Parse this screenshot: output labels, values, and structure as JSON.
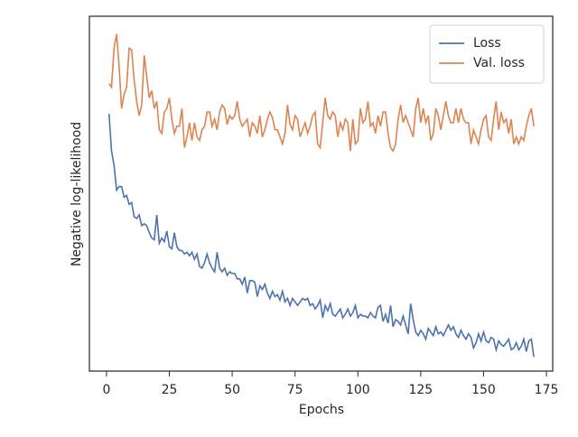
{
  "chart_data": {
    "type": "line",
    "xlabel": "Epochs",
    "ylabel": "Negative log-likelihood",
    "x": [
      1,
      2,
      3,
      4,
      5,
      6,
      7,
      8,
      9,
      10,
      11,
      12,
      13,
      14,
      15,
      16,
      17,
      18,
      19,
      20,
      21,
      22,
      23,
      24,
      25,
      26,
      27,
      28,
      29,
      30,
      31,
      32,
      33,
      34,
      35,
      36,
      37,
      38,
      39,
      40,
      41,
      42,
      43,
      44,
      45,
      46,
      47,
      48,
      49,
      50,
      51,
      52,
      53,
      54,
      55,
      56,
      57,
      58,
      59,
      60,
      61,
      62,
      63,
      64,
      65,
      66,
      67,
      68,
      69,
      70,
      71,
      72,
      73,
      74,
      75,
      76,
      77,
      78,
      79,
      80,
      81,
      82,
      83,
      84,
      85,
      86,
      87,
      88,
      89,
      90,
      91,
      92,
      93,
      94,
      95,
      96,
      97,
      98,
      99,
      100,
      101,
      102,
      103,
      104,
      105,
      106,
      107,
      108,
      109,
      110,
      111,
      112,
      113,
      114,
      115,
      116,
      117,
      118,
      119,
      120,
      121,
      122,
      123,
      124,
      125,
      126,
      127,
      128,
      129,
      130,
      131,
      132,
      133,
      134,
      135,
      136,
      137,
      138,
      139,
      140,
      141,
      142,
      143,
      144,
      145,
      146,
      147,
      148,
      149,
      150,
      151,
      152,
      153,
      154,
      155,
      156,
      157,
      158,
      159,
      160,
      161,
      162,
      163,
      164,
      165,
      166,
      167,
      168,
      169,
      170
    ],
    "series": [
      {
        "name": "Loss",
        "color": "#4c72b0",
        "values": [
          72.5,
          62,
          58,
          51,
          52,
          52,
          49,
          49.5,
          47,
          47.5,
          43.5,
          43,
          44,
          41,
          41.5,
          41,
          39,
          37.5,
          37,
          44,
          36,
          37.5,
          36.5,
          39.5,
          35,
          34.5,
          39,
          35,
          34,
          34,
          33,
          33.5,
          32.5,
          33.5,
          31.5,
          33,
          29.5,
          29,
          30.5,
          33,
          30.5,
          29,
          28,
          33.5,
          29,
          28,
          29,
          27,
          28,
          27.5,
          27.5,
          26,
          26,
          24.5,
          26.5,
          22,
          25.5,
          25.5,
          25,
          21,
          24,
          23,
          24.5,
          22,
          20.5,
          22.5,
          21,
          21.5,
          20,
          22.5,
          19.5,
          20.5,
          18.5,
          20.5,
          19.5,
          18.5,
          19.5,
          20.5,
          20,
          20.5,
          18.5,
          19,
          17.5,
          18.5,
          20,
          15,
          18.5,
          17,
          19,
          16,
          15.5,
          16.5,
          17.5,
          15,
          16,
          17.5,
          15.5,
          16.5,
          18.5,
          15,
          16,
          15.5,
          15.5,
          15,
          16.5,
          15.5,
          15,
          18,
          18.5,
          14,
          16,
          13.5,
          18.5,
          12.5,
          14.5,
          14,
          13,
          15.5,
          13,
          10.5,
          19,
          14.5,
          11,
          10,
          11.5,
          10.5,
          9,
          12,
          11,
          10,
          12.5,
          10.5,
          11,
          10,
          11.5,
          13,
          11.5,
          12.5,
          10.5,
          9.5,
          11.5,
          10,
          9,
          10.5,
          9.5,
          6.5,
          8,
          10.5,
          8.5,
          11,
          8.5,
          8,
          9.5,
          9,
          6,
          8.5,
          7.5,
          7,
          8,
          9,
          6,
          6.5,
          8,
          6,
          7,
          9,
          5.5,
          8.5,
          9,
          4
        ]
      },
      {
        "name": "Val. loss",
        "color": "#dd8452",
        "values": [
          81,
          80,
          91,
          95,
          86,
          74,
          78,
          80,
          91,
          90.5,
          82,
          76,
          72,
          75,
          89,
          83,
          77,
          79,
          74,
          76,
          68,
          67,
          73,
          74,
          77,
          71,
          67,
          69,
          69,
          74,
          63,
          66,
          70,
          65,
          70,
          66,
          65,
          68,
          69,
          73,
          73,
          69,
          71,
          68,
          73,
          75,
          74,
          69.5,
          72,
          71,
          72,
          76,
          71,
          69,
          70,
          71,
          66,
          70,
          69,
          67,
          72,
          66,
          68,
          71,
          73,
          71.5,
          68,
          68,
          66,
          64,
          67,
          75,
          69.5,
          68,
          72,
          71,
          66,
          68,
          70,
          67,
          69,
          72,
          73,
          64,
          63,
          70,
          77,
          72,
          71,
          73,
          72,
          66,
          70,
          68,
          71,
          70,
          62,
          71,
          64,
          65,
          74,
          70,
          71,
          76,
          69,
          70,
          67,
          72,
          69,
          73,
          73,
          67,
          63,
          62,
          64,
          71,
          75,
          70,
          72,
          70,
          68,
          66,
          74,
          77,
          70,
          74,
          70,
          72,
          65,
          67,
          74,
          72,
          68,
          72,
          76,
          72,
          70,
          70,
          74,
          70,
          74,
          71,
          70,
          70,
          64,
          68,
          66,
          64,
          68,
          71,
          72,
          66,
          65,
          71,
          76,
          68,
          73,
          70,
          71,
          67,
          71,
          64,
          66,
          64,
          66,
          65,
          69,
          72,
          74,
          69
        ]
      }
    ],
    "xlim": [
      -6.8,
      177.5
    ],
    "xticks": [
      0,
      25,
      50,
      75,
      100,
      125,
      150,
      175
    ],
    "ylim": [
      0,
      100
    ],
    "legend": "upper right"
  }
}
